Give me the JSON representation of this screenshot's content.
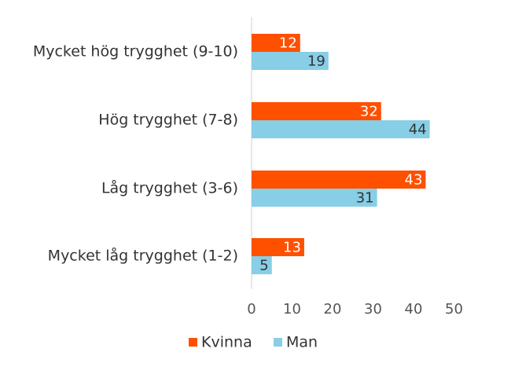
{
  "chart_data": {
    "type": "bar",
    "orientation": "horizontal",
    "categories": [
      "Mycket hög trygghet (9-10)",
      "Hög trygghet (7-8)",
      "Låg trygghet (3-6)",
      "Mycket låg trygghet (1-2)"
    ],
    "series": [
      {
        "name": "Kvinna",
        "color": "#FF5000",
        "label_color": "#ffffff",
        "values": [
          12,
          32,
          43,
          13
        ]
      },
      {
        "name": "Man",
        "color": "#87CEE6",
        "label_color": "#333333",
        "values": [
          19,
          44,
          31,
          5
        ]
      }
    ],
    "xlim": [
      0,
      50
    ],
    "xticks": [
      "0",
      "10",
      "20",
      "30",
      "40",
      "50"
    ],
    "grid": false,
    "legend_position": "bottom"
  }
}
